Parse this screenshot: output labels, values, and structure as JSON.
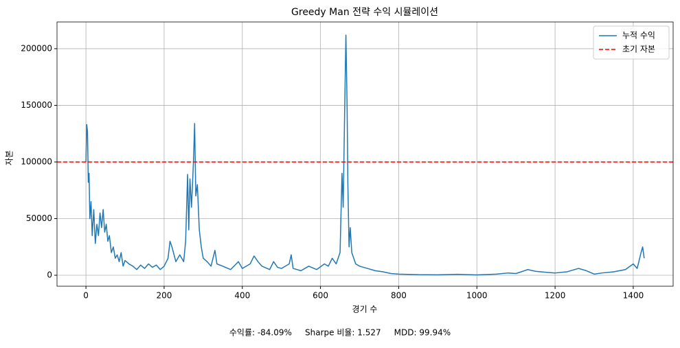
{
  "chart_data": {
    "type": "line",
    "title": "Greedy Man 전략 수익 시뮬레이션",
    "xlabel": "경기 수",
    "ylabel": "자본",
    "x": [
      0,
      2,
      4,
      6,
      8,
      10,
      13,
      16,
      20,
      24,
      28,
      32,
      36,
      40,
      44,
      48,
      52,
      56,
      60,
      65,
      70,
      75,
      80,
      85,
      90,
      95,
      100,
      110,
      120,
      130,
      140,
      150,
      160,
      170,
      180,
      190,
      200,
      210,
      215,
      220,
      230,
      240,
      250,
      255,
      260,
      263,
      266,
      270,
      275,
      278,
      281,
      285,
      290,
      295,
      300,
      310,
      320,
      330,
      335,
      350,
      370,
      390,
      400,
      420,
      430,
      440,
      450,
      470,
      480,
      490,
      500,
      520,
      525,
      530,
      550,
      570,
      590,
      610,
      620,
      630,
      640,
      650,
      655,
      658,
      662,
      665,
      668,
      670,
      673,
      676,
      680,
      690,
      700,
      720,
      740,
      760,
      780,
      800,
      850,
      900,
      950,
      1000,
      1050,
      1080,
      1100,
      1130,
      1150,
      1180,
      1200,
      1230,
      1260,
      1280,
      1300,
      1320,
      1350,
      1380,
      1400,
      1410,
      1420,
      1424,
      1428
    ],
    "series": [
      {
        "name": "누적 수익",
        "color": "#1f77b4",
        "values": [
          100000,
          133000,
          127000,
          82000,
          90000,
          50000,
          65000,
          35000,
          58000,
          28000,
          45000,
          35000,
          55000,
          42000,
          58000,
          38000,
          45000,
          30000,
          35000,
          20000,
          25000,
          15000,
          18000,
          12000,
          20000,
          8000,
          13000,
          10000,
          8000,
          5000,
          9000,
          6000,
          10000,
          7000,
          9000,
          5000,
          8000,
          15000,
          30000,
          25000,
          12000,
          18000,
          12000,
          30000,
          89000,
          40000,
          85000,
          60000,
          100000,
          134000,
          70000,
          80000,
          40000,
          25000,
          15000,
          12000,
          8000,
          22000,
          10000,
          8000,
          5000,
          12000,
          6000,
          10000,
          17000,
          12000,
          8000,
          5000,
          12000,
          7000,
          6000,
          10000,
          18000,
          6000,
          4000,
          8000,
          5000,
          10000,
          8000,
          15000,
          10000,
          20000,
          90000,
          60000,
          150000,
          212000,
          150000,
          80000,
          25000,
          42000,
          20000,
          10000,
          8000,
          6000,
          4000,
          3000,
          1500,
          1000,
          500,
          400,
          800,
          300,
          1000,
          2000,
          1500,
          5000,
          3500,
          2500,
          2000,
          3000,
          6000,
          4000,
          1000,
          2000,
          3000,
          5000,
          10000,
          6000,
          20000,
          25000,
          15000
        ]
      }
    ],
    "hlines": [
      {
        "name": "초기 자본",
        "value": 100000,
        "color": "#ff0000"
      }
    ],
    "xlim": [
      -74,
      1502
    ],
    "ylim": [
      -9700,
      223600
    ],
    "xticks": [
      0,
      200,
      400,
      600,
      800,
      1000,
      1200,
      1400
    ],
    "yticks": [
      0,
      50000,
      100000,
      150000,
      200000
    ],
    "grid": true,
    "legend": "upper right",
    "annotation": "수익률: -84.09%     Sharpe 비율: 1.527     MDD: 99.94%"
  }
}
